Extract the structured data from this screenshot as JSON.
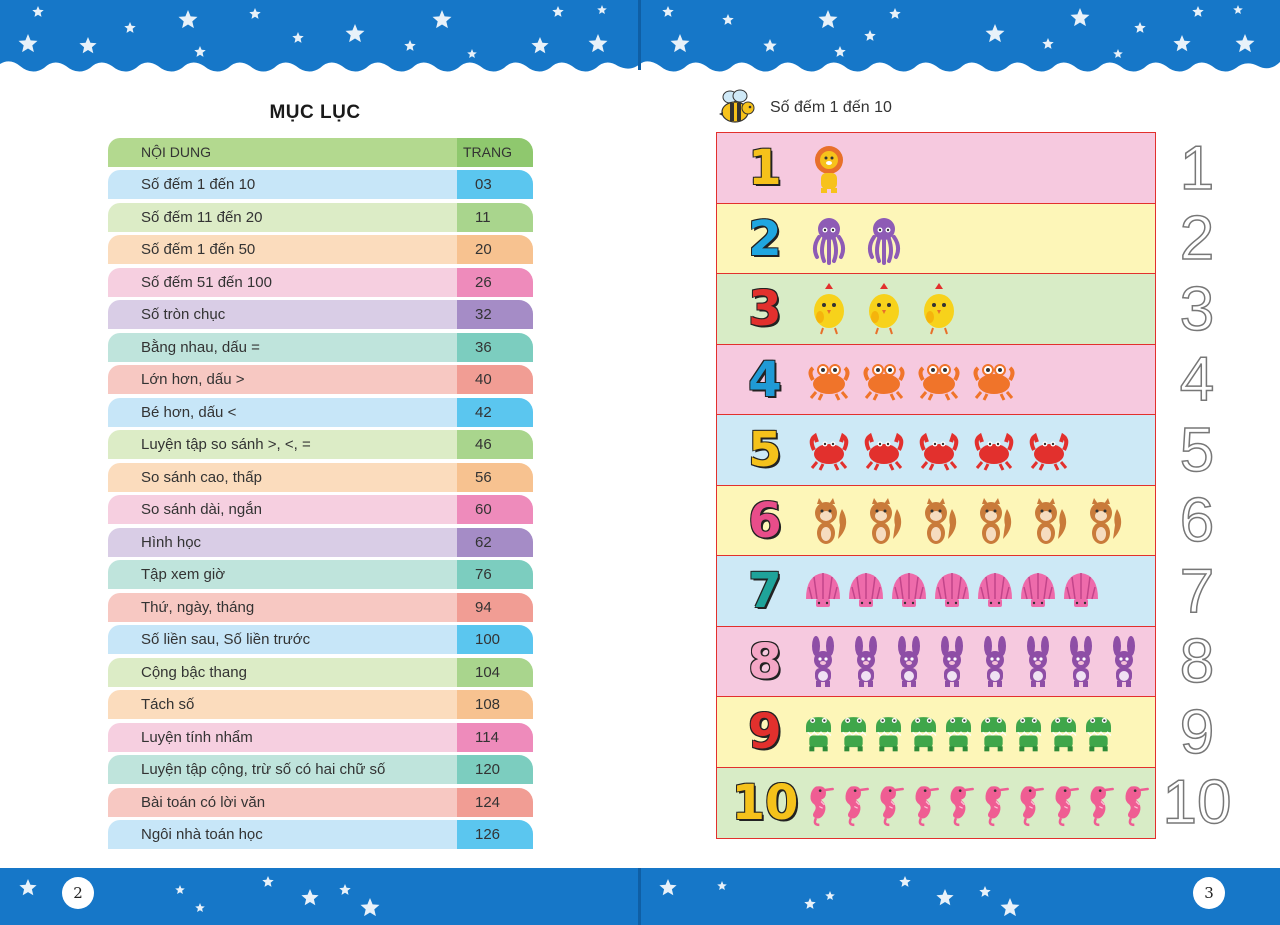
{
  "left_page": {
    "page_number": "2",
    "title": "MỤC LỤC",
    "header": {
      "content": "NỘI DUNG",
      "page": "TRANG"
    },
    "items": [
      {
        "label": "Số đếm 1 đến 10",
        "page": "03",
        "color": "#c7e6f8",
        "accent": "#5bc6ef"
      },
      {
        "label": "Số đếm 11 đến 20",
        "page": "11",
        "color": "#dcecc6",
        "accent": "#a9d58d"
      },
      {
        "label": "Số đếm 1 đến 50",
        "page": "20",
        "color": "#fbdcbd",
        "accent": "#f7c290"
      },
      {
        "label": "Số đếm 51 đến 100",
        "page": "26",
        "color": "#f6cfe0",
        "accent": "#ee8bbb"
      },
      {
        "label": "Số tròn chục",
        "page": "32",
        "color": "#d9cde6",
        "accent": "#a58cc6"
      },
      {
        "label": "Bằng nhau, dấu =",
        "page": "36",
        "color": "#bfe4dc",
        "accent": "#7ccdbf"
      },
      {
        "label": "Lớn hơn, dấu >",
        "page": "40",
        "color": "#f7c8c2",
        "accent": "#f19d94"
      },
      {
        "label": "Bé hơn, dấu <",
        "page": "42",
        "color": "#c7e6f8",
        "accent": "#5bc6ef"
      },
      {
        "label": "Luyện tập so sánh >, <, =",
        "page": "46",
        "color": "#dcecc6",
        "accent": "#a9d58d"
      },
      {
        "label": "So sánh cao, thấp",
        "page": "56",
        "color": "#fbdcbd",
        "accent": "#f7c290"
      },
      {
        "label": "So sánh dài, ngắn",
        "page": "60",
        "color": "#f6cfe0",
        "accent": "#ee8bbb"
      },
      {
        "label": "Hình học",
        "page": "62",
        "color": "#d9cde6",
        "accent": "#a58cc6"
      },
      {
        "label": "Tập xem giờ",
        "page": "76",
        "color": "#bfe4dc",
        "accent": "#7ccdbf"
      },
      {
        "label": "Thứ, ngày, tháng",
        "page": "94",
        "color": "#f7c8c2",
        "accent": "#f19d94"
      },
      {
        "label": "Số liền sau, Số liền trước",
        "page": "100",
        "color": "#c7e6f8",
        "accent": "#5bc6ef"
      },
      {
        "label": "Cộng bậc thang",
        "page": "104",
        "color": "#dcecc6",
        "accent": "#a9d58d"
      },
      {
        "label": "Tách số",
        "page": "108",
        "color": "#fbdcbd",
        "accent": "#f7c290"
      },
      {
        "label": "Luyện tính nhẩm",
        "page": "114",
        "color": "#f6cfe0",
        "accent": "#ee8bbb"
      },
      {
        "label": "Luyện tập cộng, trừ số có hai chữ số",
        "page": "120",
        "color": "#bfe4dc",
        "accent": "#7ccdbf"
      },
      {
        "label": "Bài toán có lời văn",
        "page": "124",
        "color": "#f7c8c2",
        "accent": "#f19d94"
      },
      {
        "label": "Ngôi nhà toán học",
        "page": "126",
        "color": "#c7e6f8",
        "accent": "#5bc6ef"
      }
    ]
  },
  "right_page": {
    "page_number": "3",
    "title": "Số đếm 1 đến 10",
    "rows": [
      {
        "number": "1",
        "count": 1,
        "animal": "lion-icon",
        "bg": "#f6c9df",
        "digit_color": "#f5c21b"
      },
      {
        "number": "2",
        "count": 2,
        "animal": "octopus-icon",
        "bg": "#fdf6b8",
        "digit_color": "#1fa6e0"
      },
      {
        "number": "3",
        "count": 3,
        "animal": "chick-icon",
        "bg": "#d8ecc6",
        "digit_color": "#e2302d"
      },
      {
        "number": "4",
        "count": 4,
        "animal": "crab-orange-icon",
        "bg": "#f6c9df",
        "digit_color": "#1f9ad6"
      },
      {
        "number": "5",
        "count": 5,
        "animal": "crab-red-icon",
        "bg": "#cde9f6",
        "digit_color": "#f5c21b"
      },
      {
        "number": "6",
        "count": 6,
        "animal": "squirrel-icon",
        "bg": "#fdf6b8",
        "digit_color": "#e84d8a"
      },
      {
        "number": "7",
        "count": 7,
        "animal": "shell-icon",
        "bg": "#cde9f6",
        "digit_color": "#1fa39a"
      },
      {
        "number": "8",
        "count": 8,
        "animal": "rabbit-icon",
        "bg": "#f6c9df",
        "digit_color": "#f4a7c6"
      },
      {
        "number": "9",
        "count": 9,
        "animal": "crocodile-icon",
        "bg": "#fdf6b8",
        "digit_color": "#e2302d"
      },
      {
        "number": "10",
        "count": 10,
        "animal": "seahorse-icon",
        "bg": "#d8ecc6",
        "digit_color": "#f5c21b"
      }
    ]
  }
}
